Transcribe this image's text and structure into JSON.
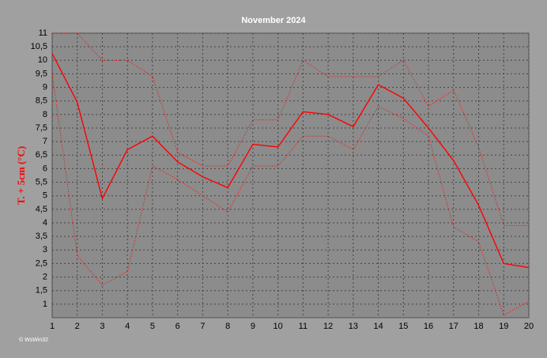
{
  "chart_data": {
    "type": "line",
    "title": "November 2024",
    "y_label": "T. + 5cm (°C)",
    "watermark": "© WsWin32",
    "x": [
      1,
      2,
      3,
      4,
      5,
      6,
      7,
      8,
      9,
      10,
      11,
      12,
      13,
      14,
      15,
      16,
      17,
      18,
      19,
      20
    ],
    "xlim": [
      1,
      20
    ],
    "xticks": [
      1,
      2,
      3,
      4,
      5,
      6,
      7,
      8,
      9,
      10,
      11,
      12,
      13,
      14,
      15,
      16,
      17,
      18,
      19,
      20
    ],
    "ylim": [
      0.5,
      11
    ],
    "yticks": [
      1,
      {
        "value": 1.5,
        "label": "1,5"
      },
      2,
      {
        "value": 2.5,
        "label": "2,5"
      },
      3,
      {
        "value": 3.5,
        "label": "3,5"
      },
      4,
      {
        "value": 4.5,
        "label": "4,5"
      },
      5,
      {
        "value": 5.5,
        "label": "5,5"
      },
      6,
      {
        "value": 6.5,
        "label": "6,5"
      },
      7,
      {
        "value": 7.5,
        "label": "7,5"
      },
      8,
      {
        "value": 8.5,
        "label": "8,5"
      },
      9,
      {
        "value": 9.5,
        "label": "9,5"
      },
      10,
      {
        "value": 10.5,
        "label": "10,5"
      },
      11
    ],
    "grid": true,
    "series": [
      {
        "color": "#ff0000",
        "style": "solid",
        "values": [
          10.25,
          8.45,
          4.9,
          6.7,
          7.2,
          6.25,
          5.7,
          5.3,
          6.9,
          6.8,
          8.1,
          8.0,
          7.55,
          9.1,
          8.6,
          7.5,
          6.3,
          4.65,
          2.5,
          2.35
        ]
      },
      {
        "color": "#ff0000",
        "style": "dotted",
        "values": [
          11,
          11,
          10.0,
          10.0,
          9.4,
          6.6,
          6.1,
          6.1,
          7.8,
          7.8,
          10.0,
          9.4,
          9.4,
          9.4,
          10.0,
          8.3,
          8.9,
          6.8,
          3.9,
          3.9
        ]
      },
      {
        "color": "#ff0000",
        "style": "dotted",
        "values": [
          9.5,
          2.8,
          1.7,
          2.2,
          6.1,
          5.6,
          5.0,
          4.4,
          6.1,
          6.1,
          7.2,
          7.2,
          6.7,
          8.3,
          7.85,
          7.2,
          3.85,
          3.3,
          0.6,
          1.1
        ]
      }
    ]
  }
}
